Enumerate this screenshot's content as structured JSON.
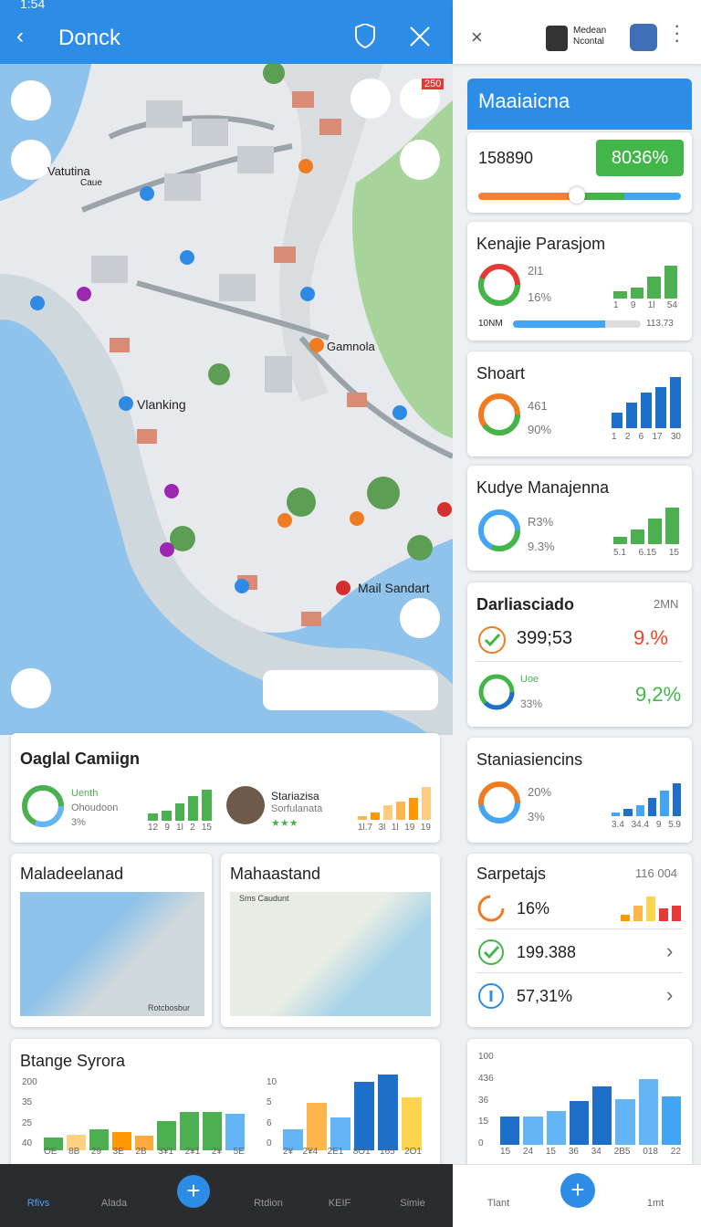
{
  "status_time": "1:54",
  "left": {
    "title": "Donck",
    "map_labels": [
      "Vatutina",
      "Caue",
      "Vlanking",
      "Gamnola",
      "Mail Sandart"
    ],
    "map_badge": "250",
    "campaign": {
      "title": "Oaglal Camiign",
      "legend": [
        "Uenth",
        "Ohoudoon",
        "3%"
      ],
      "bars_a": {
        "values": [
          2,
          3,
          5,
          7,
          9
        ],
        "colors": [
          "#4caf50"
        ],
        "labels": [
          "12",
          "9",
          "1l",
          "2",
          "15"
        ]
      },
      "person": "Stariazisa",
      "person_sub": "Sorfulanata",
      "bars_b": {
        "values": [
          1,
          2,
          4,
          5,
          6,
          9
        ],
        "colors": [
          "#ffb74d",
          "#ff9800",
          "#ffcc80"
        ],
        "labels": [
          "1l.7",
          "3l",
          "1l",
          "19",
          "19"
        ]
      }
    },
    "map_cards": [
      {
        "title": "Maladeelanad",
        "caption": "Rotcbosbur"
      },
      {
        "title": "Mahaastand",
        "caption": "Sms Caudunt"
      }
    ],
    "chart": {
      "title": "Btange Syrora",
      "a": {
        "yticks": [
          200,
          35,
          25,
          40
        ],
        "values": [
          2,
          2.4,
          3.2,
          2.8,
          2.2,
          4.5,
          5.8,
          5.8,
          5.6
        ],
        "colors": [
          "#4caf50",
          "#ffd180",
          "#4caf50",
          "#ff9800",
          "#ffab40",
          "#4caf50",
          "#4caf50",
          "#4caf50",
          "#64b5f6"
        ],
        "labels": [
          "OE",
          "8B",
          "29",
          "3E",
          "2B",
          "3¥1",
          "2¥1",
          "2¥",
          "5E"
        ]
      },
      "b": {
        "yticks": [
          10,
          5,
          6,
          0
        ],
        "values": [
          2.5,
          5.5,
          3.8,
          8,
          8.8,
          6.2
        ],
        "colors": [
          "#64b5f6",
          "#ffb74d",
          "#64b5f6",
          "#1e6fc8",
          "#1e6fc8",
          "#ffd54f"
        ],
        "labels": [
          "2¥",
          "2¥4",
          "2E1",
          "8O1",
          "165",
          "2O1"
        ]
      }
    },
    "nav": [
      "Rfivs",
      "Alada",
      "Rtdion",
      "KEIF",
      "Simie"
    ]
  },
  "right": {
    "brand": "Medean Ncontal",
    "header": "Maaiaicna",
    "count": "158890",
    "badge": "8036%",
    "kenajie": {
      "title": "Kenajie Parasjom",
      "v1": "2l1",
      "v2": "16%",
      "foot_l": "10NM",
      "foot_r": "113.73",
      "values": [
        2,
        3,
        6,
        9
      ],
      "colors": [
        "#4caf50"
      ],
      "labels": [
        "1",
        "9",
        "1l",
        "54"
      ]
    },
    "shoart": {
      "title": "Shoart",
      "v1": "461",
      "v2": "90%",
      "values": [
        3,
        5,
        7,
        8,
        10
      ],
      "colors": [
        "#1e6fc8"
      ],
      "labels": [
        "1",
        "2",
        "6",
        "17",
        "30"
      ]
    },
    "kudye": {
      "title": "Kudye Manajenna",
      "v1": "R3%",
      "v2": "9.3%",
      "values": [
        2,
        4,
        7,
        10
      ],
      "colors": [
        "#4caf50"
      ],
      "labels": [
        "5.1",
        "6.15",
        "15"
      ]
    },
    "darlia": {
      "title": "Darliasciado",
      "corner": "2MN",
      "row1": "399;53",
      "row1_pct": "9.%",
      "row2_a": "Uoe",
      "row2_b": "33%",
      "row2_pct": "9,2%"
    },
    "stania": {
      "title": "Staniasiencins",
      "v1": "20%",
      "v2": "3%",
      "values": [
        1,
        2,
        3,
        5,
        7,
        9
      ],
      "colors": [
        "#42a5f5",
        "#1e6fc8"
      ],
      "labels": [
        "3.4",
        "34.4",
        "9",
        "5.9"
      ]
    },
    "sarpe": {
      "title": "Sarpetajs",
      "corner": "116 004",
      "rows": [
        "16%",
        "199.388",
        "57,31%"
      ],
      "values": [
        2,
        5,
        8,
        4,
        5
      ],
      "colors": [
        "#ff9800",
        "#ffb74d",
        "#ffd54f",
        "#e53935",
        "#e53935"
      ]
    },
    "chart": {
      "yticks": [
        100,
        436,
        36,
        15,
        0
      ],
      "values": [
        3.5,
        3.5,
        4.2,
        5.5,
        7.3,
        5.7,
        8.2,
        6
      ],
      "colors": [
        "#1e6fc8",
        "#64b5f6",
        "#64b5f6",
        "#1e6fc8",
        "#1e6fc8",
        "#64b5f6",
        "#64b5f6",
        "#42a5f5"
      ],
      "labels": [
        "15",
        "24",
        "15",
        "36",
        "34",
        "2B5",
        "018",
        "22"
      ]
    },
    "nav": [
      "Tlant",
      "1mt"
    ]
  }
}
